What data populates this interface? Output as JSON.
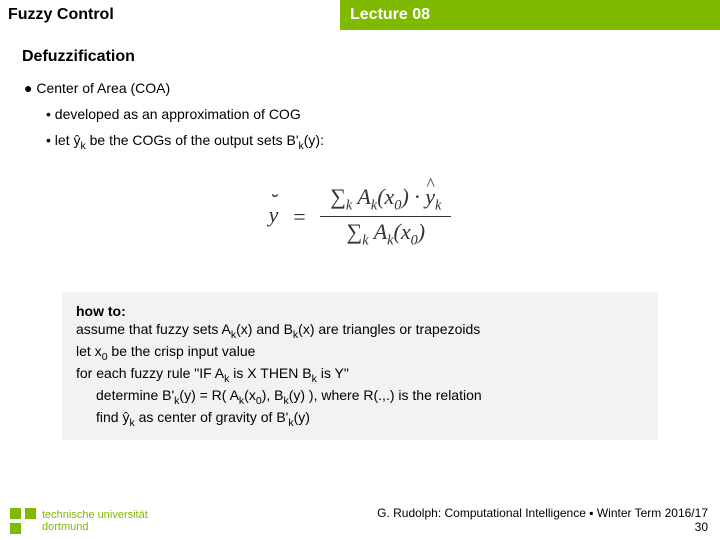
{
  "header": {
    "left": "Fuzzy Control",
    "right": "Lecture 08",
    "accent_color": "#7fba00"
  },
  "section": {
    "title": "Defuzzification",
    "bullet1": "● Center of Area (COA)",
    "bullet2a": "• developed as an approximation of COG",
    "bullet2b_prefix": "• let ",
    "bullet2b_var": "ŷ",
    "bullet2b_sub": "k",
    "bullet2b_suffix": " be the COGs of the output sets B'",
    "bullet2b_sub2": "k",
    "bullet2b_tail": "(y):"
  },
  "formula": {
    "lhs": "y̆ ",
    "eq": "=",
    "num": "∑k Ak(x0) · ŷk",
    "den": "∑k Ak(x0)",
    "fontsize": 22,
    "color": "#333333"
  },
  "howto": {
    "title": "how to:",
    "line1_a": "assume that fuzzy sets A",
    "line1_b": "(x) and B",
    "line1_c": "(x) are triangles or trapezoids",
    "line2_a": "let x",
    "line2_b": " be the crisp input value",
    "line3_a": "for each fuzzy rule \"IF A",
    "line3_b": " is X THEN B",
    "line3_c": " is Y\"",
    "line4_a": "determine B'",
    "line4_b": "(y) = R( A",
    "line4_c": "(x",
    "line4_d": "), B",
    "line4_e": "(y) ), where R(.,.) is the relation",
    "line5_a": "find ŷ",
    "line5_b": " as center of gravity of B'",
    "line5_c": "(y)",
    "bg": "#f2f2f2"
  },
  "footer": {
    "uni_line1": "technische universität",
    "uni_line2": "dortmund",
    "attribution": "G. Rudolph: Computational Intelligence ▪ Winter Term 2016/17",
    "page": "30",
    "logo_color": "#7fba00"
  }
}
